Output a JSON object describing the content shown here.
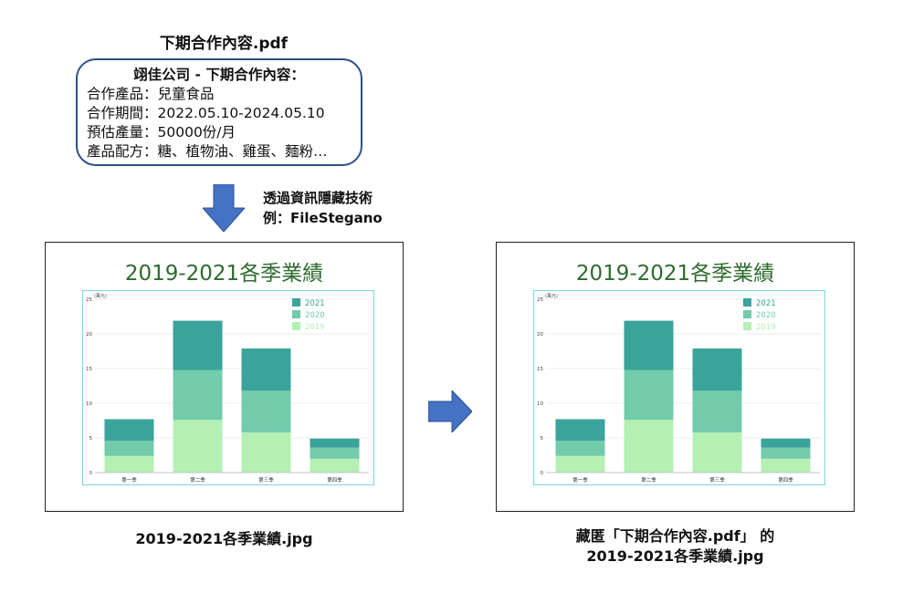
{
  "pdf_filename": "下期合作內容.pdf",
  "document": {
    "heading": "翊佳公司 - 下期合作內容：",
    "lines": [
      "合作產品：兒童食品",
      "合作期間：2022.05.10-2024.05.10",
      "預估產量：50000份/月",
      "產品配方：糖、植物油、雞蛋、麵粉…"
    ]
  },
  "technique": {
    "line1": "透過資訊隱藏技術",
    "line2": "例：FileStegano"
  },
  "colors": {
    "arrow": "#4472c4",
    "box_border": "#2f4f86",
    "title_green": "#2e6b2e",
    "series_2021": "#3aa39b",
    "series_2020": "#72cbab",
    "series_2019": "#b4f0b4"
  },
  "chart_data": [
    {
      "type": "bar",
      "stacked": true,
      "title": "2019-2021各季業績",
      "ylabel": "(萬元)",
      "ylim": [
        0,
        25
      ],
      "yticks": [
        0,
        5,
        10,
        15,
        20,
        25
      ],
      "categories": [
        "第一季",
        "第二季",
        "第三季",
        "第四季"
      ],
      "series": [
        {
          "name": "2019",
          "values": [
            2.4,
            7.6,
            5.8,
            2.0
          ],
          "color": "#b4f0b4"
        },
        {
          "name": "2020",
          "values": [
            2.2,
            7.2,
            6.0,
            1.6
          ],
          "color": "#72cbab"
        },
        {
          "name": "2021",
          "values": [
            3.1,
            7.1,
            6.1,
            1.3
          ],
          "color": "#3aa39b"
        }
      ],
      "legend_order": [
        "2021",
        "2020",
        "2019"
      ],
      "legend": "top-right",
      "grid": true
    },
    {
      "type": "bar",
      "stacked": true,
      "title": "2019-2021各季業績",
      "ylabel": "(萬元)",
      "ylim": [
        0,
        25
      ],
      "yticks": [
        0,
        5,
        10,
        15,
        20,
        25
      ],
      "categories": [
        "第一季",
        "第二季",
        "第三季",
        "第四季"
      ],
      "series": [
        {
          "name": "2019",
          "values": [
            2.4,
            7.6,
            5.8,
            2.0
          ],
          "color": "#b4f0b4"
        },
        {
          "name": "2020",
          "values": [
            2.2,
            7.2,
            6.0,
            1.6
          ],
          "color": "#72cbab"
        },
        {
          "name": "2021",
          "values": [
            3.1,
            7.1,
            6.1,
            1.3
          ],
          "color": "#3aa39b"
        }
      ],
      "legend_order": [
        "2021",
        "2020",
        "2019"
      ],
      "legend": "top-right",
      "grid": true
    }
  ],
  "caption_left": "2019-2021各季業績.jpg",
  "caption_right": {
    "line1": "藏匿「下期合作內容.pdf」 的",
    "line2": "2019-2021各季業績.jpg"
  }
}
